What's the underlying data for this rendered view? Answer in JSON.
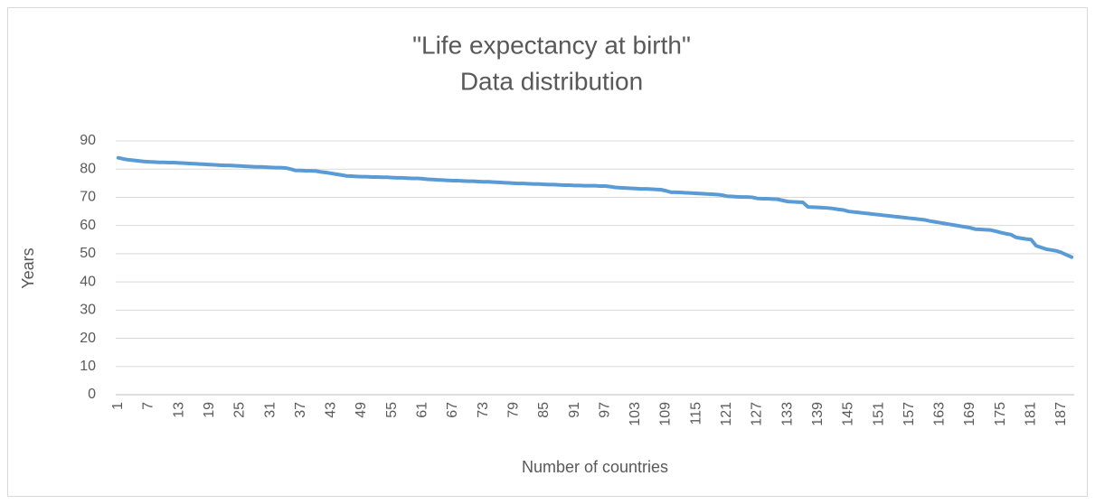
{
  "chart_data": {
    "type": "line",
    "title": "\"Life expectancy at birth\"",
    "subtitle": "Data distribution",
    "y_label": "Years",
    "x_label": "Number of countries",
    "color": "#5b9bd5",
    "grid": true,
    "ylim": [
      0,
      90
    ],
    "yticks": [
      0,
      10,
      20,
      30,
      40,
      50,
      60,
      70,
      80,
      90
    ],
    "categories": [
      1,
      null,
      null,
      null,
      null,
      null,
      7,
      null,
      null,
      null,
      null,
      null,
      13,
      null,
      null,
      null,
      null,
      null,
      19,
      null,
      null,
      null,
      null,
      null,
      25,
      null,
      null,
      null,
      null,
      null,
      31,
      null,
      null,
      null,
      null,
      null,
      37,
      null,
      null,
      null,
      null,
      null,
      43,
      null,
      null,
      null,
      null,
      null,
      49,
      null,
      null,
      null,
      null,
      null,
      55,
      null,
      null,
      null,
      null,
      null,
      61,
      null,
      null,
      null,
      null,
      null,
      67,
      null,
      null,
      null,
      null,
      null,
      73,
      null,
      null,
      null,
      null,
      null,
      79,
      null,
      null,
      null,
      null,
      null,
      85,
      null,
      null,
      null,
      null,
      null,
      91,
      null,
      null,
      null,
      null,
      null,
      97,
      null,
      null,
      null,
      null,
      null,
      103,
      null,
      null,
      null,
      null,
      null,
      109,
      null,
      null,
      null,
      null,
      null,
      115,
      null,
      null,
      null,
      null,
      null,
      121,
      null,
      null,
      null,
      null,
      null,
      127,
      null,
      null,
      null,
      null,
      null,
      133,
      null,
      null,
      null,
      null,
      null,
      139,
      null,
      null,
      null,
      null,
      null,
      145,
      null,
      null,
      null,
      null,
      null,
      151,
      null,
      null,
      null,
      null,
      null,
      157,
      null,
      null,
      null,
      null,
      null,
      163,
      null,
      null,
      null,
      null,
      null,
      169,
      null,
      null,
      null,
      null,
      null,
      175,
      null,
      null,
      null,
      null,
      null,
      181,
      null,
      null,
      null,
      null,
      null,
      187,
      null,
      null
    ],
    "values": [
      84.0,
      83.6,
      83.3,
      83.1,
      82.9,
      82.7,
      82.6,
      82.5,
      82.4,
      82.4,
      82.3,
      82.3,
      82.2,
      82.1,
      82.0,
      81.9,
      81.8,
      81.7,
      81.6,
      81.5,
      81.4,
      81.3,
      81.3,
      81.2,
      81.1,
      81.0,
      80.9,
      80.8,
      80.8,
      80.7,
      80.6,
      80.5,
      80.5,
      80.4,
      80.0,
      79.5,
      79.5,
      79.4,
      79.4,
      79.3,
      79.0,
      78.8,
      78.5,
      78.2,
      77.9,
      77.6,
      77.5,
      77.4,
      77.3,
      77.3,
      77.2,
      77.2,
      77.1,
      77.1,
      77.0,
      76.9,
      76.9,
      76.8,
      76.7,
      76.7,
      76.6,
      76.4,
      76.3,
      76.2,
      76.1,
      76.0,
      75.9,
      75.9,
      75.8,
      75.7,
      75.7,
      75.6,
      75.5,
      75.5,
      75.4,
      75.3,
      75.2,
      75.1,
      75.0,
      74.9,
      74.9,
      74.8,
      74.7,
      74.7,
      74.6,
      74.5,
      74.5,
      74.4,
      74.3,
      74.3,
      74.2,
      74.2,
      74.1,
      74.1,
      74.1,
      74.0,
      74.0,
      73.8,
      73.5,
      73.4,
      73.3,
      73.2,
      73.1,
      73.0,
      73.0,
      72.9,
      72.8,
      72.7,
      72.3,
      71.8,
      71.8,
      71.7,
      71.6,
      71.5,
      71.4,
      71.3,
      71.2,
      71.1,
      71.0,
      70.8,
      70.4,
      70.3,
      70.2,
      70.1,
      70.1,
      70.0,
      69.6,
      69.5,
      69.5,
      69.4,
      69.3,
      68.9,
      68.5,
      68.4,
      68.3,
      68.2,
      66.6,
      66.5,
      66.4,
      66.3,
      66.2,
      66.0,
      65.7,
      65.5,
      65.0,
      64.8,
      64.6,
      64.4,
      64.2,
      64.0,
      63.8,
      63.6,
      63.4,
      63.2,
      63.0,
      62.8,
      62.6,
      62.4,
      62.2,
      62.0,
      61.6,
      61.3,
      61.0,
      60.7,
      60.4,
      60.1,
      59.8,
      59.5,
      59.2,
      58.7,
      58.6,
      58.5,
      58.4,
      58.0,
      57.5,
      57.1,
      56.8,
      55.8,
      55.5,
      55.2,
      55.0,
      52.8,
      52.2,
      51.6,
      51.3,
      51.0,
      50.4,
      49.6,
      48.8
    ]
  }
}
